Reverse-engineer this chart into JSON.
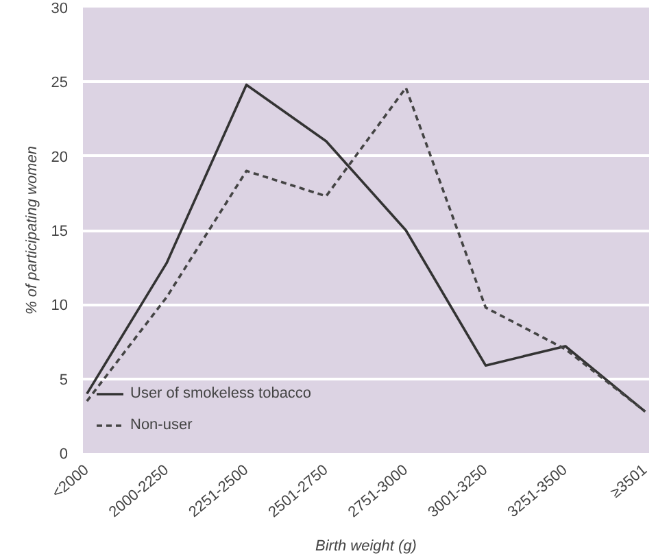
{
  "chart_data": {
    "type": "line",
    "xlabel": "Birth weight (g)",
    "ylabel": "% of participating women",
    "categories": [
      "<2000",
      "2000-2250",
      "2251-2500",
      "2501-2750",
      "2751-3000",
      "3001-3250",
      "3251-3500",
      "≥3501"
    ],
    "series": [
      {
        "name": "User of smokeless tobacco",
        "color": "#333333",
        "line_style": "solid",
        "values": [
          4,
          12.8,
          24.8,
          21,
          15,
          5.9,
          7.2,
          2.8
        ]
      },
      {
        "name": "Non-user",
        "color": "#444444",
        "line_style": "dashed",
        "values": [
          3.5,
          10.5,
          19,
          17.3,
          24.6,
          9.8,
          7,
          2.8
        ]
      }
    ],
    "ylim": [
      0,
      30
    ],
    "yticks": [
      0,
      5,
      10,
      15,
      20,
      25,
      30
    ],
    "grid": "y",
    "legend": "bottom left",
    "marker": "none"
  }
}
